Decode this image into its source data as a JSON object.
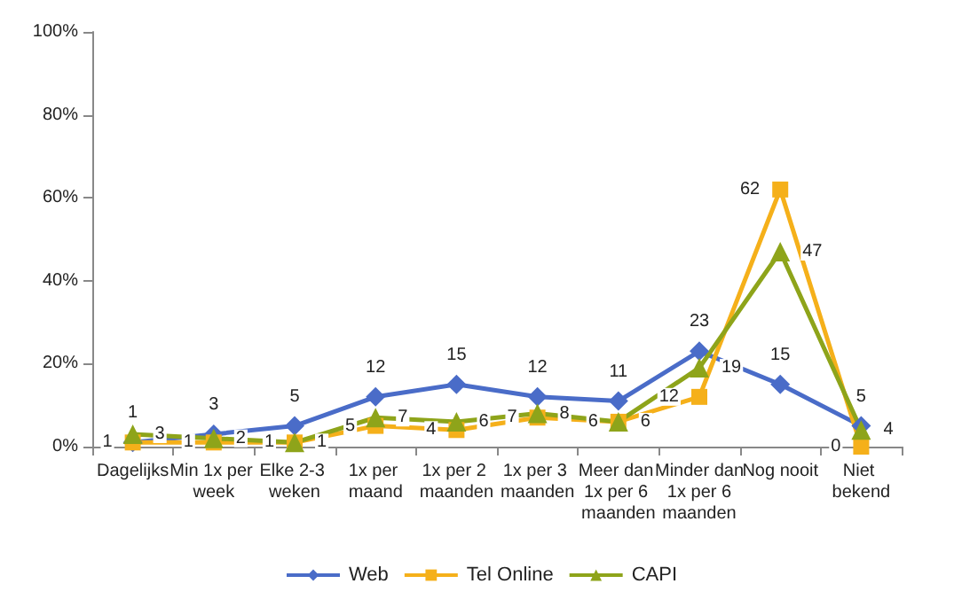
{
  "chart_data": {
    "type": "line",
    "categories": [
      "Dagelijks",
      "Min 1x per week",
      "Elke 2-3 weken",
      "1x per maand",
      "1x per 2 maanden",
      "1x per 3 maanden",
      "Meer dan 1x per 6 maanden",
      "Minder dan 1x per 6 maanden",
      "Nog nooit",
      "Niet bekend"
    ],
    "series": [
      {
        "name": "Web",
        "color": "#4a6cc8",
        "marker": "diamond",
        "values": [
          1,
          3,
          5,
          12,
          15,
          12,
          11,
          23,
          15,
          5
        ]
      },
      {
        "name": "Tel Online",
        "color": "#f5b01a",
        "marker": "square",
        "values": [
          1,
          1,
          1,
          5,
          4,
          7,
          6,
          12,
          62,
          0
        ]
      },
      {
        "name": "CAPI",
        "color": "#8ea41a",
        "marker": "triangle",
        "values": [
          3,
          2,
          1,
          7,
          6,
          8,
          6,
          19,
          47,
          4
        ]
      }
    ],
    "ylim": [
      0,
      100
    ],
    "yticks": [
      {
        "value": 0,
        "label": "0%"
      },
      {
        "value": 20,
        "label": "20%"
      },
      {
        "value": 40,
        "label": "40%"
      },
      {
        "value": 60,
        "label": "60%"
      },
      {
        "value": 80,
        "label": "80%"
      },
      {
        "value": 100,
        "label": "100%"
      }
    ],
    "grid": false,
    "legend": "bottom",
    "data_labels": true
  }
}
